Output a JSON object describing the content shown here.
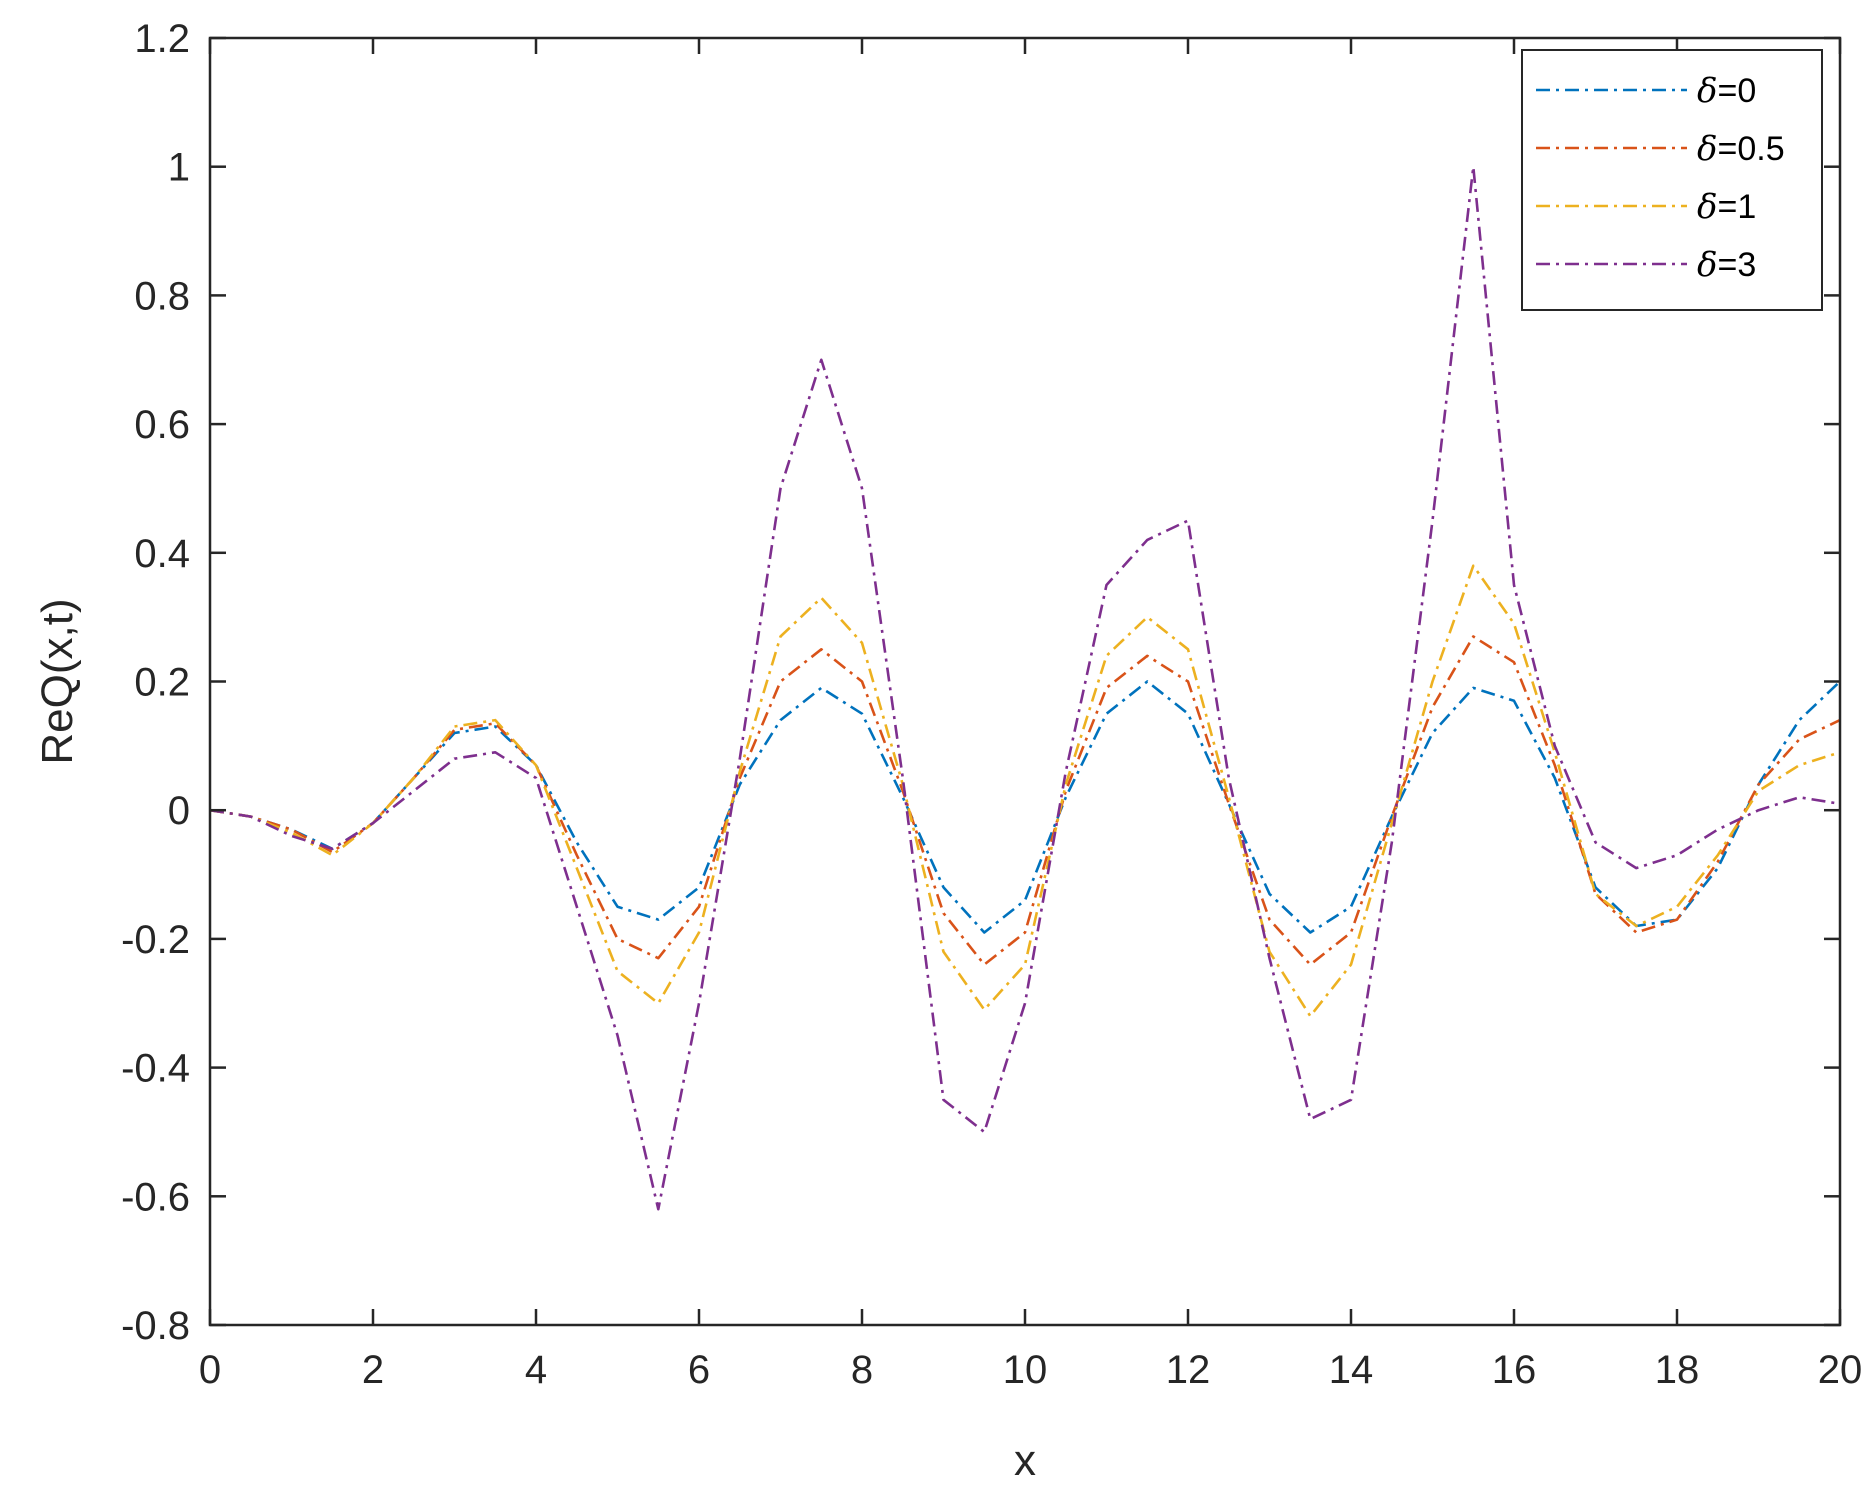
{
  "chart_data": {
    "type": "line",
    "xlabel": "x",
    "ylabel": "ReQ(x,t)",
    "xlim": [
      0,
      20
    ],
    "ylim": [
      -0.8,
      1.2
    ],
    "xticks": [
      0,
      2,
      4,
      6,
      8,
      10,
      12,
      14,
      16,
      18,
      20
    ],
    "yticks": [
      -0.8,
      -0.6,
      -0.4,
      -0.2,
      0,
      0.2,
      0.4,
      0.6,
      0.8,
      1,
      1.2
    ],
    "xtick_labels": [
      "0",
      "2",
      "4",
      "6",
      "8",
      "10",
      "12",
      "14",
      "16",
      "18",
      "20"
    ],
    "ytick_labels": [
      "-0.8",
      "-0.6",
      "-0.4",
      "-0.2",
      "0",
      "0.2",
      "0.4",
      "0.6",
      "0.8",
      "1",
      "1.2"
    ],
    "grid": false,
    "legend_position": "top-right",
    "line_style": "dash-dot",
    "series": [
      {
        "name": "δ=0",
        "legend_symbol": "δ",
        "legend_value": "=0",
        "color": "#0072BD",
        "x": [
          0,
          0.5,
          1.0,
          1.5,
          2.0,
          2.5,
          3.0,
          3.5,
          4.0,
          4.5,
          5.0,
          5.5,
          6.0,
          6.5,
          7.0,
          7.5,
          8.0,
          8.5,
          9.0,
          9.5,
          10.0,
          10.5,
          11.0,
          11.5,
          12.0,
          12.5,
          13.0,
          13.5,
          14.0,
          14.5,
          15.0,
          15.5,
          16.0,
          16.5,
          17.0,
          17.5,
          18.0,
          18.5,
          19.0,
          19.5,
          20.0
        ],
        "y": [
          0,
          -0.01,
          -0.03,
          -0.06,
          -0.02,
          0.05,
          0.12,
          0.13,
          0.07,
          -0.05,
          -0.15,
          -0.17,
          -0.12,
          0.04,
          0.14,
          0.19,
          0.15,
          0.02,
          -0.12,
          -0.19,
          -0.14,
          0.02,
          0.15,
          0.2,
          0.15,
          0.01,
          -0.13,
          -0.19,
          -0.15,
          -0.01,
          0.12,
          0.19,
          0.17,
          0.05,
          -0.12,
          -0.18,
          -0.17,
          -0.09,
          0.04,
          0.14,
          0.2
        ]
      },
      {
        "name": "δ=0.5",
        "legend_symbol": "δ",
        "legend_value": "=0.5",
        "color": "#D95319",
        "x": [
          0,
          0.5,
          1.0,
          1.5,
          2.0,
          2.5,
          3.0,
          3.5,
          4.0,
          4.5,
          5.0,
          5.5,
          6.0,
          6.5,
          7.0,
          7.5,
          8.0,
          8.5,
          9.0,
          9.5,
          10.0,
          10.5,
          11.0,
          11.5,
          12.0,
          12.5,
          13.0,
          13.5,
          14.0,
          14.5,
          15.0,
          15.5,
          16.0,
          16.5,
          17.0,
          17.5,
          18.0,
          18.5,
          19.0,
          19.5,
          20.0
        ],
        "y": [
          0,
          -0.01,
          -0.03,
          -0.065,
          -0.02,
          0.05,
          0.125,
          0.135,
          0.07,
          -0.07,
          -0.2,
          -0.23,
          -0.15,
          0.05,
          0.2,
          0.25,
          0.2,
          0.03,
          -0.16,
          -0.24,
          -0.19,
          0.03,
          0.19,
          0.24,
          0.2,
          0.01,
          -0.17,
          -0.24,
          -0.19,
          -0.01,
          0.16,
          0.27,
          0.23,
          0.07,
          -0.13,
          -0.19,
          -0.17,
          -0.08,
          0.04,
          0.11,
          0.14
        ]
      },
      {
        "name": "δ=1",
        "legend_symbol": "δ",
        "legend_value": "=1",
        "color": "#EDB120",
        "x": [
          0,
          0.5,
          1.0,
          1.5,
          2.0,
          2.5,
          3.0,
          3.5,
          4.0,
          4.5,
          5.0,
          5.5,
          6.0,
          6.5,
          7.0,
          7.5,
          8.0,
          8.5,
          9.0,
          9.5,
          10.0,
          10.5,
          11.0,
          11.5,
          12.0,
          12.5,
          13.0,
          13.5,
          14.0,
          14.5,
          15.0,
          15.5,
          16.0,
          16.5,
          17.0,
          17.5,
          18.0,
          18.5,
          19.0,
          19.5,
          20.0
        ],
        "y": [
          0,
          -0.01,
          -0.035,
          -0.07,
          -0.02,
          0.05,
          0.13,
          0.14,
          0.07,
          -0.09,
          -0.25,
          -0.3,
          -0.19,
          0.06,
          0.27,
          0.33,
          0.26,
          0.04,
          -0.22,
          -0.31,
          -0.24,
          0.04,
          0.24,
          0.3,
          0.25,
          0.02,
          -0.22,
          -0.32,
          -0.24,
          -0.02,
          0.2,
          0.38,
          0.29,
          0.09,
          -0.13,
          -0.18,
          -0.15,
          -0.07,
          0.03,
          0.07,
          0.09
        ]
      },
      {
        "name": "δ=3",
        "legend_symbol": "δ",
        "legend_value": "=3",
        "color": "#7E2F8E",
        "x": [
          0,
          0.5,
          1.0,
          1.5,
          2.0,
          2.5,
          3.0,
          3.5,
          4.0,
          4.5,
          5.0,
          5.5,
          6.0,
          6.5,
          7.0,
          7.5,
          8.0,
          8.5,
          9.0,
          9.5,
          10.0,
          10.5,
          11.0,
          11.5,
          12.0,
          12.5,
          13.0,
          13.5,
          14.0,
          14.5,
          15.0,
          15.5,
          16.0,
          16.5,
          17.0,
          17.5,
          18.0,
          18.5,
          19.0,
          19.5,
          20.0
        ],
        "y": [
          0,
          -0.01,
          -0.04,
          -0.06,
          -0.02,
          0.03,
          0.08,
          0.09,
          0.05,
          -0.15,
          -0.35,
          -0.62,
          -0.3,
          0.08,
          0.5,
          0.7,
          0.5,
          0.05,
          -0.45,
          -0.5,
          -0.3,
          0.06,
          0.35,
          0.42,
          0.45,
          0.05,
          -0.23,
          -0.48,
          -0.45,
          -0.05,
          0.45,
          1.0,
          0.35,
          0.1,
          -0.05,
          -0.09,
          -0.07,
          -0.03,
          0.0,
          0.02,
          0.01
        ]
      }
    ]
  }
}
